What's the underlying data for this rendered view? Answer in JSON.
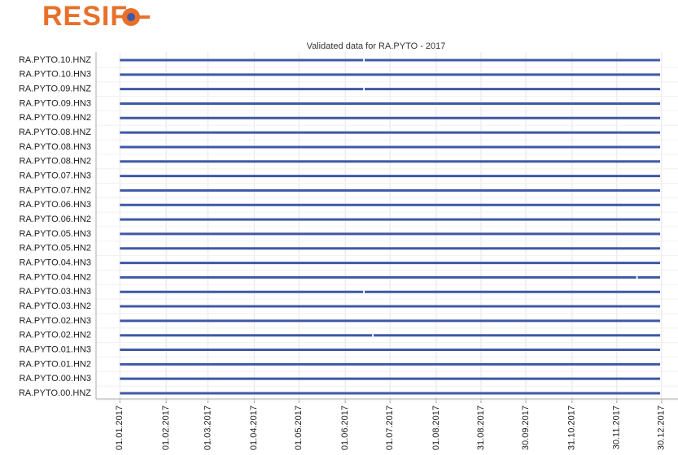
{
  "logo": "RESIF",
  "chart_data": {
    "type": "timeline",
    "title": "Validated data for RA.PYTO - 2017",
    "color": "#3f58a6",
    "grid": true,
    "xlim": [
      -16,
      374
    ],
    "xticks": [
      {
        "value": 0,
        "label": "01.01.2017"
      },
      {
        "value": 31,
        "label": "01.02.2017"
      },
      {
        "value": 59,
        "label": "01.03.2017"
      },
      {
        "value": 90,
        "label": "01.04.2017"
      },
      {
        "value": 120,
        "label": "01.05.2017"
      },
      {
        "value": 151,
        "label": "01.06.2017"
      },
      {
        "value": 181,
        "label": "01.07.2017"
      },
      {
        "value": 212,
        "label": "01.08.2017"
      },
      {
        "value": 242,
        "label": "31.08.2017"
      },
      {
        "value": 272,
        "label": "30.09.2017"
      },
      {
        "value": 303,
        "label": "31.10.2017"
      },
      {
        "value": 333,
        "label": "30.11.2017"
      },
      {
        "value": 363,
        "label": "30.12.2017"
      }
    ],
    "rows": [
      {
        "name": "RA.PYTO.10.HNZ",
        "segments": [
          [
            0,
            163
          ],
          [
            164,
            362
          ]
        ]
      },
      {
        "name": "RA.PYTO.10.HN3",
        "segments": [
          [
            0,
            362
          ]
        ]
      },
      {
        "name": "RA.PYTO.09.HNZ",
        "segments": [
          [
            0,
            163
          ],
          [
            164,
            362
          ]
        ]
      },
      {
        "name": "RA.PYTO.09.HN3",
        "segments": [
          [
            0,
            362
          ]
        ]
      },
      {
        "name": "RA.PYTO.09.HN2",
        "segments": [
          [
            0,
            362
          ]
        ]
      },
      {
        "name": "RA.PYTO.08.HNZ",
        "segments": [
          [
            0,
            362
          ]
        ]
      },
      {
        "name": "RA.PYTO.08.HN3",
        "segments": [
          [
            0,
            362
          ]
        ]
      },
      {
        "name": "RA.PYTO.08.HN2",
        "segments": [
          [
            0,
            362
          ]
        ]
      },
      {
        "name": "RA.PYTO.07.HN3",
        "segments": [
          [
            0,
            362
          ]
        ]
      },
      {
        "name": "RA.PYTO.07.HN2",
        "segments": [
          [
            0,
            362
          ]
        ]
      },
      {
        "name": "RA.PYTO.06.HN3",
        "segments": [
          [
            0,
            362
          ]
        ]
      },
      {
        "name": "RA.PYTO.06.HN2",
        "segments": [
          [
            0,
            362
          ]
        ]
      },
      {
        "name": "RA.PYTO.05.HN3",
        "segments": [
          [
            0,
            362
          ]
        ]
      },
      {
        "name": "RA.PYTO.05.HN2",
        "segments": [
          [
            0,
            362
          ]
        ]
      },
      {
        "name": "RA.PYTO.04.HN3",
        "segments": [
          [
            0,
            362
          ]
        ]
      },
      {
        "name": "RA.PYTO.04.HN2",
        "segments": [
          [
            0,
            346
          ],
          [
            347,
            362
          ]
        ]
      },
      {
        "name": "RA.PYTO.03.HN3",
        "segments": [
          [
            0,
            163
          ],
          [
            164,
            362
          ]
        ]
      },
      {
        "name": "RA.PYTO.03.HN2",
        "segments": [
          [
            0,
            362
          ]
        ]
      },
      {
        "name": "RA.PYTO.02.HN3",
        "segments": [
          [
            0,
            362
          ]
        ]
      },
      {
        "name": "RA.PYTO.02.HN2",
        "segments": [
          [
            0,
            169
          ],
          [
            170,
            362
          ]
        ]
      },
      {
        "name": "RA.PYTO.01.HN3",
        "segments": [
          [
            0,
            362
          ]
        ]
      },
      {
        "name": "RA.PYTO.01.HN2",
        "segments": [
          [
            0,
            362
          ]
        ]
      },
      {
        "name": "RA.PYTO.00.HN3",
        "segments": [
          [
            0,
            362
          ]
        ]
      },
      {
        "name": "RA.PYTO.00.HNZ",
        "segments": [
          [
            0,
            362
          ]
        ]
      }
    ]
  }
}
